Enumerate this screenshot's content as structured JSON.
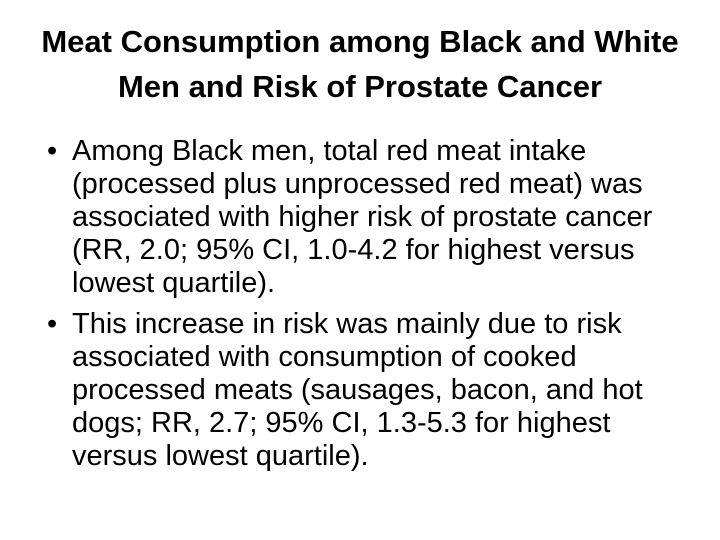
{
  "slide": {
    "title": "Meat Consumption among Black and White\nMen and Risk of Prostate Cancer",
    "bullets": [
      {
        "marker": "•",
        "text": "Among Black men, total red meat intake\n(processed plus unprocessed red meat) was\nassociated with higher risk of prostate cancer\n(RR, 2.0; 95% CI, 1.0-4.2 for highest versus\nlowest quartile)."
      },
      {
        "marker": "•",
        "text": "This increase in risk was mainly due to risk\nassociated with consumption of cooked\nprocessed meats (sausages, bacon, and hot\ndogs; RR, 2.7; 95% CI, 1.3-5.3 for highest\nversus lowest quartile)."
      }
    ],
    "colors": {
      "background": "#ffffff",
      "text": "#000000"
    }
  }
}
